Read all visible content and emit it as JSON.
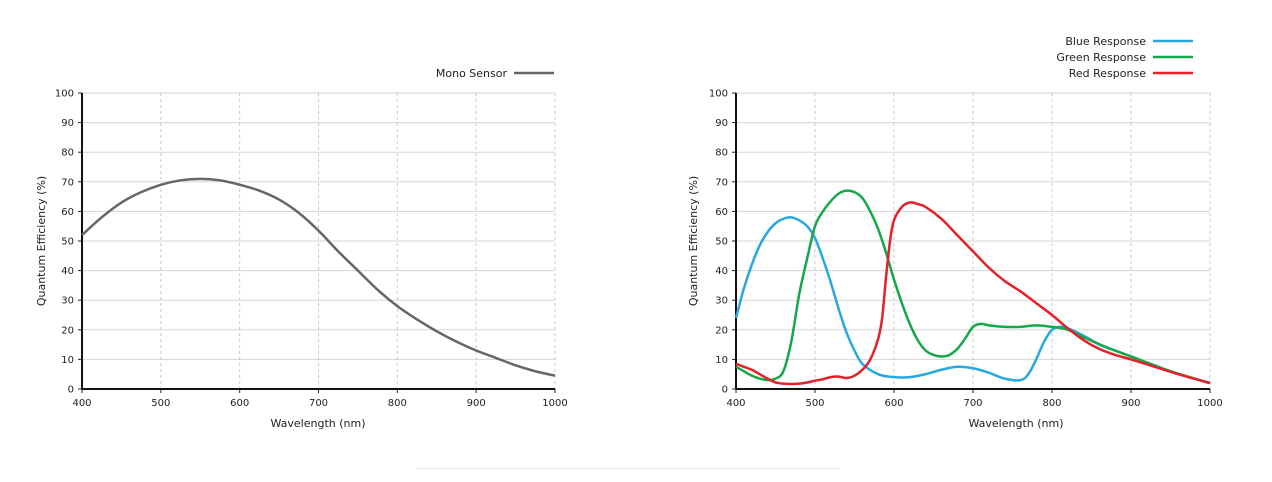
{
  "chart_data": [
    {
      "type": "line",
      "xlabel": "Wavelength (nm)",
      "ylabel": "Quantum Efficiency (%)",
      "xlim": [
        400,
        1000
      ],
      "ylim": [
        0,
        100
      ],
      "xticks": [
        "400",
        "500",
        "600",
        "700",
        "800",
        "900",
        "1000"
      ],
      "yticks": [
        "0",
        "10",
        "20",
        "30",
        "40",
        "50",
        "60",
        "70",
        "80",
        "90",
        "100"
      ],
      "grid": true,
      "legend_position": "top-right",
      "series": [
        {
          "name": "Mono Sensor",
          "color": "#666666",
          "x": [
            400,
            425,
            450,
            475,
            500,
            525,
            550,
            575,
            600,
            625,
            650,
            675,
            700,
            725,
            750,
            775,
            800,
            825,
            850,
            875,
            900,
            925,
            950,
            975,
            1000
          ],
          "y": [
            52,
            58,
            63,
            66.5,
            69,
            70.5,
            71,
            70.5,
            69,
            67,
            64,
            59.5,
            53.5,
            46.5,
            40,
            33.5,
            28,
            23.5,
            19.5,
            16,
            13,
            10.5,
            8,
            6,
            4.5
          ]
        }
      ]
    },
    {
      "type": "line",
      "xlabel": "Wavelength (nm)",
      "ylabel": "Quantum Efficiency (%)",
      "xlim": [
        400,
        1000
      ],
      "ylim": [
        0,
        100
      ],
      "xticks": [
        "400",
        "500",
        "600",
        "700",
        "800",
        "900",
        "1000"
      ],
      "yticks": [
        "0",
        "10",
        "20",
        "30",
        "40",
        "50",
        "60",
        "70",
        "80",
        "90",
        "100"
      ],
      "grid": true,
      "legend_position": "top-right",
      "series": [
        {
          "name": "Blue Response",
          "color": "#29a8e0",
          "x": [
            400,
            410,
            420,
            430,
            440,
            450,
            460,
            470,
            480,
            490,
            500,
            510,
            520,
            530,
            540,
            550,
            560,
            580,
            600,
            620,
            640,
            660,
            680,
            700,
            720,
            740,
            760,
            770,
            780,
            790,
            800,
            810,
            820,
            840,
            860,
            880,
            900,
            930,
            960,
            1000
          ],
          "y": [
            24,
            34,
            42,
            48.5,
            53,
            56,
            57.5,
            58,
            57,
            55,
            51,
            44,
            36,
            27,
            19,
            13,
            8.5,
            5,
            4,
            4,
            5,
            6.5,
            7.5,
            7,
            5.5,
            3.5,
            3,
            5,
            10,
            16,
            20,
            21,
            20.5,
            18,
            15,
            13,
            11,
            8,
            5,
            2
          ]
        },
        {
          "name": "Green Response",
          "color": "#15a84a",
          "x": [
            400,
            410,
            420,
            430,
            440,
            450,
            460,
            470,
            480,
            490,
            500,
            510,
            520,
            530,
            540,
            550,
            560,
            570,
            580,
            590,
            600,
            610,
            620,
            630,
            640,
            650,
            660,
            670,
            680,
            690,
            700,
            710,
            720,
            740,
            760,
            780,
            800,
            820,
            840,
            870,
            900,
            950,
            1000
          ],
          "y": [
            7.5,
            6,
            4.5,
            3.5,
            3,
            3.5,
            6,
            16,
            32,
            44,
            55,
            60,
            63.5,
            66,
            67,
            66.5,
            64.5,
            60,
            54,
            46,
            37,
            29,
            22,
            16.5,
            13,
            11.5,
            11,
            11.5,
            13.5,
            17,
            21,
            22,
            21.5,
            21,
            21,
            21.5,
            21,
            20,
            17.5,
            14,
            11,
            6,
            2
          ]
        },
        {
          "name": "Red Response",
          "color": "#e32129",
          "x": [
            400,
            410,
            420,
            430,
            440,
            450,
            460,
            470,
            480,
            490,
            500,
            510,
            520,
            530,
            540,
            550,
            560,
            570,
            580,
            585,
            590,
            595,
            600,
            610,
            620,
            630,
            640,
            660,
            680,
            700,
            720,
            740,
            760,
            780,
            800,
            820,
            840,
            860,
            880,
            900,
            930,
            960,
            1000
          ],
          "y": [
            8.5,
            7.5,
            6.5,
            5,
            3.5,
            2.2,
            1.8,
            1.7,
            1.8,
            2.2,
            2.8,
            3.3,
            4,
            4.2,
            3.7,
            4.5,
            6.5,
            10,
            17,
            24,
            38,
            50,
            57,
            61.5,
            63,
            62.5,
            61.5,
            57.5,
            52,
            46.5,
            41,
            36.5,
            33,
            29,
            25,
            20.5,
            16.5,
            13.5,
            11.5,
            10,
            7.5,
            5,
            2
          ]
        }
      ]
    }
  ]
}
